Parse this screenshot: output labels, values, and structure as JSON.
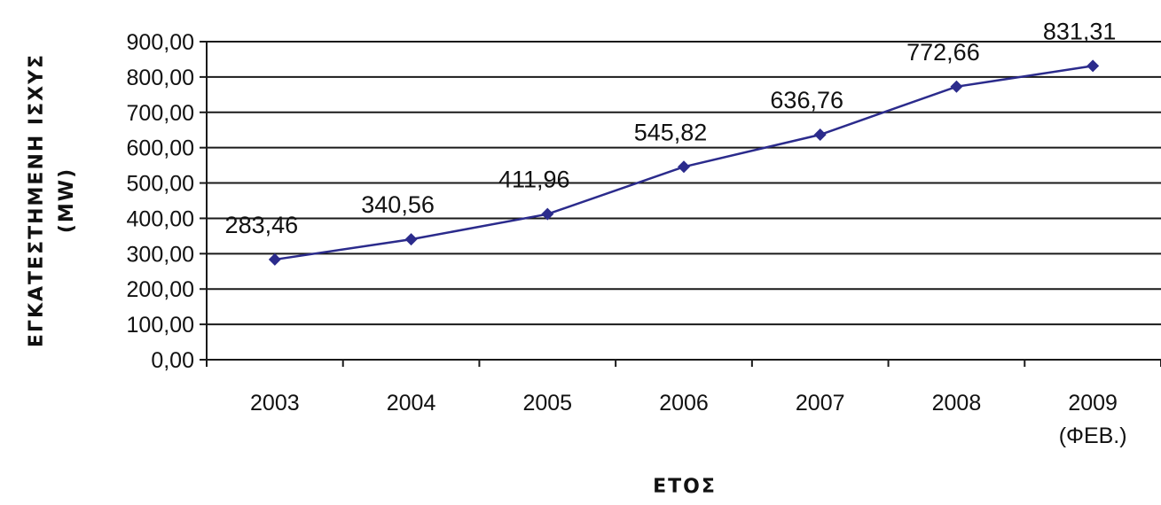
{
  "chart_data": {
    "type": "line",
    "xlabel": "ΕΤΟΣ",
    "ylabel_line1": "ΕΓΚΑΤΕΣΤΗΜΕΝΗ ΙΣΧΥΣ",
    "ylabel_line2": "(MW)",
    "categories": [
      "2003",
      "2004",
      "2005",
      "2006",
      "2007",
      "2008",
      "2009"
    ],
    "category_sublabels": [
      "",
      "",
      "",
      "",
      "",
      "",
      "(ΦΕΒ.)"
    ],
    "y_tick_labels": [
      "0,00",
      "100,00",
      "200,00",
      "300,00",
      "400,00",
      "500,00",
      "600,00",
      "700,00",
      "800,00",
      "900,00"
    ],
    "ylim": [
      0,
      900
    ],
    "ytick_step": 100,
    "grid": true,
    "legend": false,
    "series": [
      {
        "values": [
          283.46,
          340.56,
          411.96,
          545.82,
          636.76,
          772.66,
          831.31
        ],
        "data_labels": [
          "283,46",
          "340,56",
          "411,96",
          "545,82",
          "636,76",
          "772,66",
          "831,31"
        ],
        "color": "#2b2b8c",
        "marker": "diamond"
      }
    ]
  }
}
